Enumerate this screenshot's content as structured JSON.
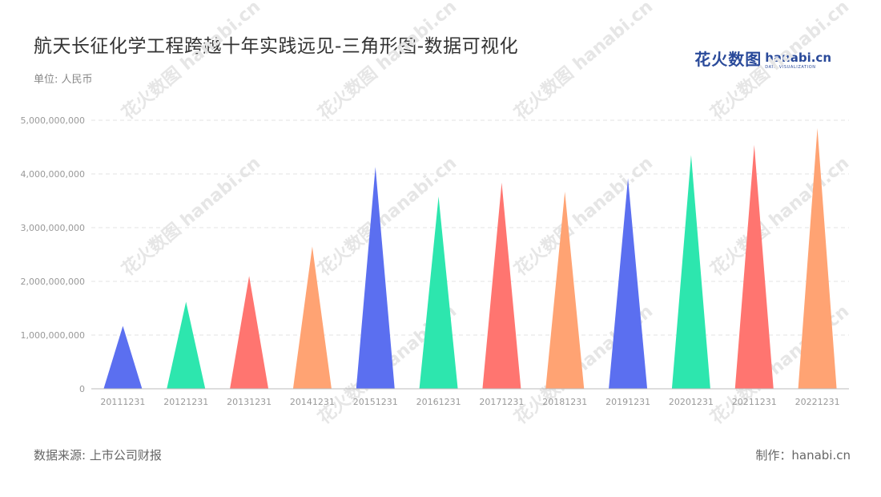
{
  "title": "航天长征化学工程跨越十年实践远见-三角形图-数据可视化",
  "unit_label": "单位: 人民币",
  "source_label": "数据来源: 上市公司财报",
  "maker_label": "制作：hanabi.cn",
  "logo": {
    "cn": "花火数图",
    "en": "hanabi.cn",
    "sub": "DATA VISUALIZATION"
  },
  "watermark": "花火数图 hanabi.cn",
  "colors": {
    "blue": "#5b6ff0",
    "green": "#2de6ae",
    "red": "#ff7570",
    "orange": "#ffa373",
    "grid": "#e3e3e3",
    "axis": "#bbbbbb"
  },
  "chart_data": {
    "type": "bar",
    "shape": "triangle",
    "title": "航天长征化学工程跨越十年实践远见-三角形图-数据可视化",
    "ylabel": "单位: 人民币",
    "ylim": [
      0,
      5000000000
    ],
    "yticks": [
      "0",
      "1,000,000,000",
      "2,000,000,000",
      "3,000,000,000",
      "4,000,000,000",
      "5,000,000,000"
    ],
    "ytick_values": [
      0,
      1000000000,
      2000000000,
      3000000000,
      4000000000,
      5000000000
    ],
    "grid": true,
    "categories": [
      "20111231",
      "20121231",
      "20131231",
      "20141231",
      "20151231",
      "20161231",
      "20171231",
      "20181231",
      "20191231",
      "20201231",
      "20211231",
      "20221231"
    ],
    "values": [
      1170000000,
      1620000000,
      2100000000,
      2650000000,
      4130000000,
      3580000000,
      3840000000,
      3670000000,
      3920000000,
      4350000000,
      4540000000,
      4850000000
    ],
    "bar_colors": [
      "#5b6ff0",
      "#2de6ae",
      "#ff7570",
      "#ffa373",
      "#5b6ff0",
      "#2de6ae",
      "#ff7570",
      "#ffa373",
      "#5b6ff0",
      "#2de6ae",
      "#ff7570",
      "#ffa373"
    ]
  }
}
